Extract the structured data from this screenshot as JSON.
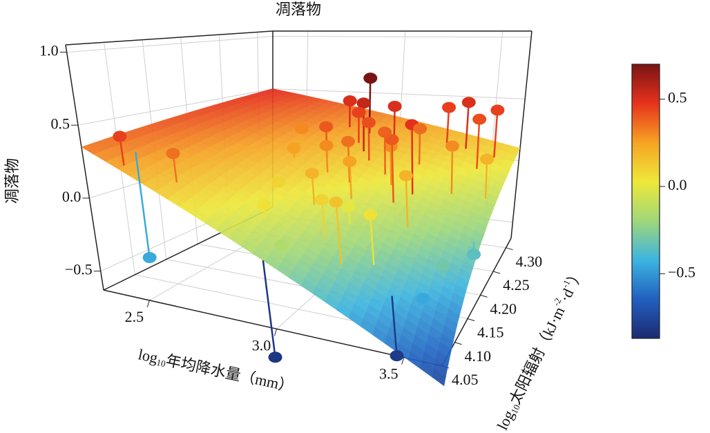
{
  "chart_data": {
    "type": "surface3d",
    "title": "凋落物",
    "x_label": [
      "log",
      "10",
      "年均降水量（mm）"
    ],
    "x_label_style": [
      "normal",
      "sub",
      "normal"
    ],
    "y_label": [
      "log",
      "10",
      "太阳辐射（kJ·m",
      "-2",
      "·d",
      "-1",
      "）"
    ],
    "y_label_style": [
      "normal",
      "sub",
      "normal",
      "sup",
      "normal",
      "sup",
      "normal"
    ],
    "z_label": "凋落物",
    "xlim": [
      2.32,
      3.65
    ],
    "ylim": [
      4.05,
      4.32
    ],
    "zlim": [
      -0.63,
      1.05
    ],
    "xticks": [
      2.5,
      {
        "value": 3,
        "label": "3.0"
      },
      3.5
    ],
    "yticks": [
      4.05,
      {
        "value": 4.1,
        "label": "4.10"
      },
      4.15,
      {
        "value": 4.2,
        "label": "4.20"
      },
      4.25,
      {
        "value": 4.3,
        "label": "4.30"
      }
    ],
    "zticks": [
      {
        "value": 1,
        "label": "1.0"
      },
      0.5,
      {
        "value": 0,
        "label": "0.0"
      },
      {
        "value": -0.5,
        "label": "−0.5"
      }
    ],
    "grid": true,
    "surface": {
      "z": [
        [
          0.35,
          0.5
        ],
        [
          -0.75,
          0.1
        ]
      ]
    },
    "points": {
      "x": [
        2.45,
        2.6,
        2.42,
        2.95,
        3.0,
        3.1,
        3.3,
        3.4,
        3.5,
        3.55,
        3.6,
        3.62,
        2.98,
        3.4,
        2.9,
        2.95,
        3.05,
        3.1,
        3.2,
        3.25,
        3.3,
        3.35,
        3.0,
        3.1,
        3.2,
        2.85,
        2.9,
        3.15,
        2.95,
        3.05,
        3.15,
        3.25,
        3.45,
        3.3,
        3.5,
        3.55,
        2.8,
        2.7,
        3.0,
        2.85
      ],
      "y": [
        4.06,
        4.08,
        4.09,
        4.28,
        4.25,
        4.27,
        4.3,
        4.3,
        4.28,
        4.3,
        4.25,
        4.2,
        4.05,
        4.1,
        4.22,
        4.2,
        4.2,
        4.18,
        4.22,
        4.2,
        4.22,
        4.18,
        4.15,
        4.12,
        4.1,
        4.15,
        4.1,
        4.15,
        4.26,
        4.24,
        4.23,
        4.26,
        4.24,
        4.12,
        4.12,
        4.15,
        4.2,
        4.25,
        4.08,
        4.28
      ],
      "z": [
        0.45,
        0.35,
        -0.45,
        0.7,
        0.55,
        0.5,
        0.45,
        0.5,
        0.42,
        0.45,
        0.2,
        -0.35,
        -0.82,
        -0.8,
        0.4,
        0.3,
        0.35,
        0.25,
        0.3,
        0.4,
        0.48,
        0.2,
        0.2,
        0.1,
        0.15,
        0.1,
        0.05,
        0.0,
        0.45,
        0.42,
        0.38,
        0.36,
        0.3,
        0.05,
        -0.45,
        -0.3,
        0.25,
        0.3,
        -0.15,
        0.5
      ]
    },
    "colorbar": {
      "lim": [
        -0.87,
        0.7
      ],
      "ticks": [
        0.5,
        {
          "value": 0,
          "label": "0.0"
        },
        {
          "value": -0.5,
          "label": "−0.5"
        }
      ],
      "colors": [
        "#1b2a70",
        "#2160c0",
        "#3cb4e0",
        "#9fd77a",
        "#eee83a",
        "#f6a323",
        "#e6321c",
        "#7a1414"
      ]
    }
  }
}
